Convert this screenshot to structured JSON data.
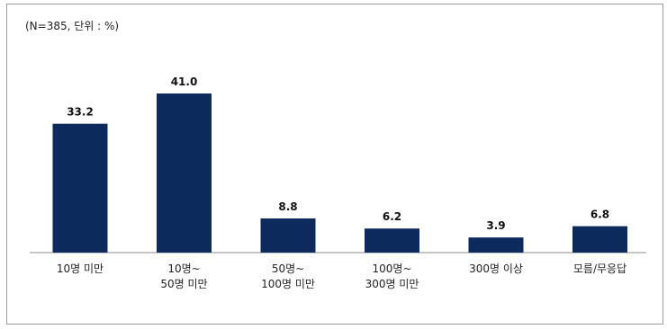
{
  "note": "(N=385, 단위 : %)",
  "chart_data": {
    "type": "bar",
    "categories": [
      [
        "10명 미만"
      ],
      [
        "10명~",
        "50명 미만"
      ],
      [
        "50명~",
        "100명 미만"
      ],
      [
        "100명~",
        "300명 미만"
      ],
      [
        "300명 이상"
      ],
      [
        "모름/무응답"
      ]
    ],
    "values": [
      33.2,
      41.0,
      8.8,
      6.2,
      3.9,
      6.8
    ],
    "value_labels": [
      "33.2",
      "41.0",
      "8.8",
      "6.2",
      "3.9",
      "6.8"
    ],
    "ylim": [
      0,
      41.0
    ],
    "grid": false,
    "legend": "none",
    "bar_color": "#0d2a5c",
    "axis_color": "#8c8c8c"
  }
}
